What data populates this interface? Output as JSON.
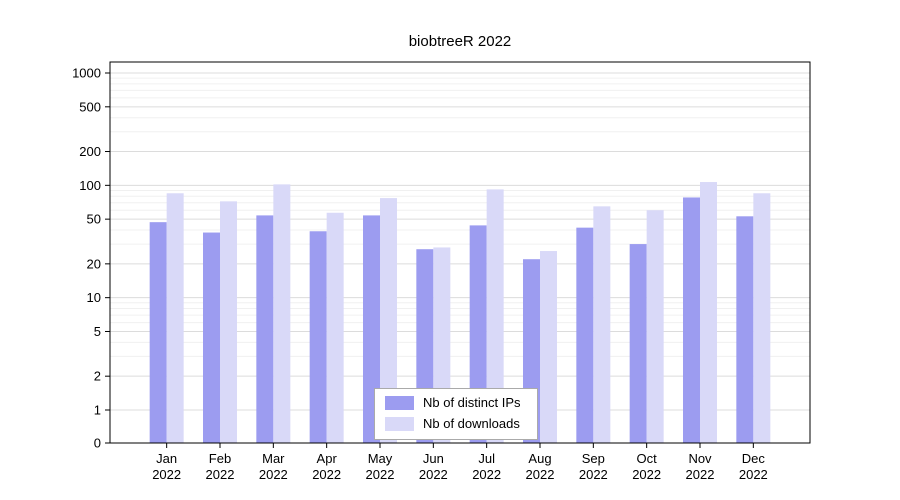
{
  "chart_data": {
    "type": "bar",
    "title": "biobtreeR 2022",
    "xlabel": "",
    "ylabel": "",
    "year": "2022",
    "categories": [
      "Jan",
      "Feb",
      "Mar",
      "Apr",
      "May",
      "Jun",
      "Jul",
      "Aug",
      "Sep",
      "Oct",
      "Nov",
      "Dec"
    ],
    "series": [
      {
        "name": "Nb of distinct IPs",
        "color": "#9c9cf0",
        "values": [
          47,
          38,
          54,
          39,
          54,
          27,
          44,
          22,
          42,
          30,
          78,
          53
        ]
      },
      {
        "name": "Nb of downloads",
        "color": "#d9d9f8",
        "values": [
          85,
          72,
          102,
          57,
          77,
          28,
          92,
          26,
          65,
          60,
          107,
          85
        ]
      }
    ],
    "yscale": "log",
    "yticks": [
      0,
      1,
      2,
      5,
      10,
      20,
      50,
      100,
      200,
      500,
      1000
    ],
    "ylim": [
      0,
      1000
    ],
    "grid": "horizontal major and minor gridlines",
    "legend_position": "bottom-center",
    "colors": {
      "axis": "#000000",
      "major_gridline": "#dcdcdc",
      "minor_gridline": "#f0f0f0",
      "background": "#ffffff"
    }
  }
}
